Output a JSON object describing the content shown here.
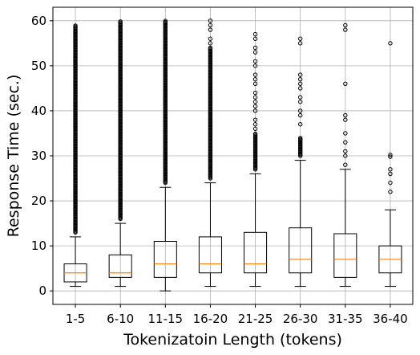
{
  "chart_data": {
    "type": "box",
    "xlabel": "Tokenizatoin Length (tokens)",
    "ylabel": "Response Time (sec.)",
    "ylim": [
      -3,
      63
    ],
    "yticks": [
      0,
      10,
      20,
      30,
      40,
      50,
      60
    ],
    "grid": true,
    "box_color": "#000000",
    "median_color": "#ff7f0e",
    "grid_color": "#b0b0b0",
    "categories": [
      "1-5",
      "6-10",
      "11-15",
      "16-20",
      "21-25",
      "26-30",
      "31-35",
      "36-40"
    ],
    "boxes": [
      {
        "whisker_low": 1,
        "q1": 2,
        "median": 4,
        "q3": 6,
        "whisker_high": 12,
        "outlier_range": [
          13,
          59
        ],
        "outliers": []
      },
      {
        "whisker_low": 1,
        "q1": 3,
        "median": 4,
        "q3": 8,
        "whisker_high": 15,
        "outlier_range": [
          16,
          60
        ],
        "outliers": []
      },
      {
        "whisker_low": 0,
        "q1": 3,
        "median": 6,
        "q3": 11,
        "whisker_high": 23,
        "outlier_range": [
          24,
          60
        ],
        "outliers": []
      },
      {
        "whisker_low": 1,
        "q1": 4,
        "median": 6,
        "q3": 12,
        "whisker_high": 24,
        "outlier_range": [
          25,
          54
        ],
        "outliers": [
          55,
          56,
          58,
          59,
          60
        ]
      },
      {
        "whisker_low": 1,
        "q1": 4,
        "median": 6,
        "q3": 13,
        "whisker_high": 26,
        "outlier_range": [
          27,
          35
        ],
        "outliers": [
          36,
          37,
          38,
          40,
          41,
          42,
          43,
          44,
          46,
          47,
          48,
          50,
          51,
          53,
          54,
          56,
          57
        ]
      },
      {
        "whisker_low": 1,
        "q1": 4,
        "median": 7,
        "q3": 14,
        "whisker_high": 29,
        "outlier_range": [
          30,
          34
        ],
        "outliers": [
          37,
          39,
          40,
          42,
          43,
          45,
          46,
          47,
          48,
          55,
          56
        ]
      },
      {
        "whisker_low": 1,
        "q1": 3,
        "median": 7,
        "q3": 12.7,
        "whisker_high": 27,
        "outlier_range": [],
        "outliers": [
          28,
          30,
          31,
          33,
          35,
          38,
          39,
          46,
          58,
          59
        ]
      },
      {
        "whisker_low": 1,
        "q1": 4,
        "median": 7,
        "q3": 10,
        "whisker_high": 18,
        "outlier_range": [],
        "outliers": [
          22,
          24,
          26,
          27,
          29.8,
          30.2,
          55
        ]
      }
    ]
  }
}
